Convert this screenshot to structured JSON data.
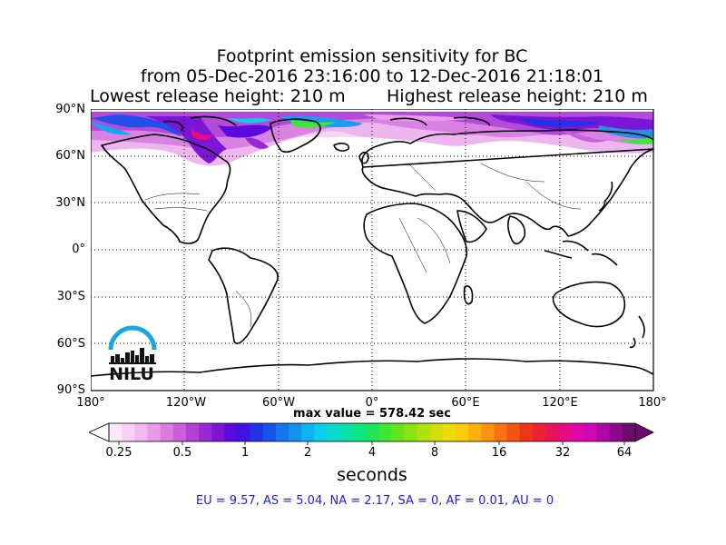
{
  "title": {
    "line1": "Footprint emission sensitivity for BC",
    "line2": "from 05-Dec-2016 23:16:00 to 12-Dec-2016 21:18:01",
    "lowest": "Lowest release height: 210 m",
    "highest": "Highest release height: 210 m"
  },
  "map": {
    "lat_labels": [
      "90°N",
      "60°N",
      "30°N",
      "0°",
      "30°S",
      "60°S",
      "90°S"
    ],
    "lon_labels": [
      "180°",
      "120°W",
      "60°W",
      "0°",
      "60°E",
      "120°E",
      "180°"
    ],
    "logo_text": "NILU",
    "logo_color": "#1aa7e0",
    "background": "#ffffff",
    "grid": "dotted"
  },
  "max_value": "max value = 578.42 sec",
  "colorbar": {
    "tick_labels": [
      "0.25",
      "0.5",
      "1",
      "2",
      "4",
      "8",
      "16",
      "32",
      "64"
    ],
    "units": "seconds",
    "colors": [
      "#fde8fb",
      "#f9d1f6",
      "#f2b8f0",
      "#e99ae9",
      "#dc7ce3",
      "#cc5fdc",
      "#b53fd6",
      "#9a27d4",
      "#7b16d7",
      "#5b0ade",
      "#3d14e3",
      "#2233e7",
      "#1954ea",
      "#1574ee",
      "#1393f0",
      "#10b2f1",
      "#0ccde9",
      "#0ad9cd",
      "#0ae1aa",
      "#0ee583",
      "#1ee658",
      "#3ee636",
      "#65e51f",
      "#8be412",
      "#aee30c",
      "#cfe008",
      "#ecdb05",
      "#fccd06",
      "#fdb00a",
      "#fc920e",
      "#f97212",
      "#f45316",
      "#ee351b",
      "#ea2233",
      "#e8135a",
      "#e60b84",
      "#e207a8",
      "#cf07b4",
      "#b007a6",
      "#8d078e",
      "#6d0a6e"
    ]
  },
  "stats": "EU = 9.57,  AS = 5.04,  NA = 2.17,  SA = 0,  AF = 0.01,  AU = 0"
}
